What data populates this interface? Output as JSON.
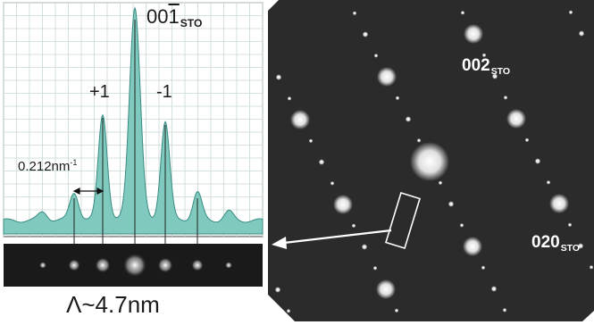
{
  "profile": {
    "peak_main_label": {
      "base": "00",
      "bar_digit": "1",
      "sub": "STO"
    },
    "peak_plus_label": "+1",
    "peak_minus_label": "-1",
    "spacing_label": {
      "base": "0.212nm",
      "sup": "-1"
    },
    "period_label": "Λ~4.7nm",
    "colors": {
      "fill": "#7fc9bf",
      "stroke": "#3a8c82",
      "grid": "#c8d8d4"
    }
  },
  "diffraction": {
    "label_002": {
      "base": "002",
      "sub": "STO"
    },
    "label_020": {
      "base": "020",
      "sub": "STO"
    },
    "colors": {
      "background": "#2a2a2a",
      "spot": "#ffffff",
      "box": "#ffffff"
    }
  }
}
